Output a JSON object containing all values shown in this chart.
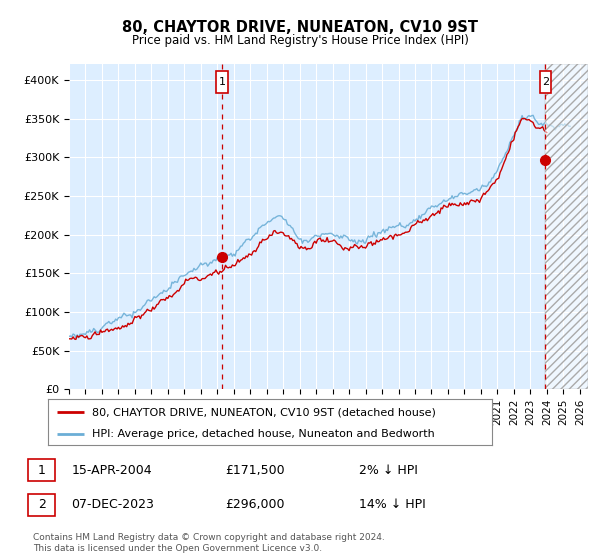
{
  "title": "80, CHAYTOR DRIVE, NUNEATON, CV10 9ST",
  "subtitle": "Price paid vs. HM Land Registry's House Price Index (HPI)",
  "legend_line1": "80, CHAYTOR DRIVE, NUNEATON, CV10 9ST (detached house)",
  "legend_line2": "HPI: Average price, detached house, Nuneaton and Bedworth",
  "sale1_label": "1",
  "sale1_date": "15-APR-2004",
  "sale1_price": "£171,500",
  "sale1_hpi": "2% ↓ HPI",
  "sale2_label": "2",
  "sale2_date": "07-DEC-2023",
  "sale2_price": "£296,000",
  "sale2_hpi": "14% ↓ HPI",
  "footnote": "Contains HM Land Registry data © Crown copyright and database right 2024.\nThis data is licensed under the Open Government Licence v3.0.",
  "ylim": [
    0,
    420000
  ],
  "yticks": [
    0,
    50000,
    100000,
    150000,
    200000,
    250000,
    300000,
    350000,
    400000
  ],
  "ytick_labels": [
    "£0",
    "£50K",
    "£100K",
    "£150K",
    "£200K",
    "£250K",
    "£300K",
    "£350K",
    "£400K"
  ],
  "hpi_color": "#6baed6",
  "price_color": "#cc0000",
  "bg_color": "#ddeeff",
  "grid_color": "#ffffff",
  "sale1_x": 2004.29,
  "sale2_x": 2023.92,
  "sale1_y": 171500,
  "sale2_y": 296000,
  "hatch_start": 2023.92,
  "xmin": 1995,
  "xmax": 2026.5
}
